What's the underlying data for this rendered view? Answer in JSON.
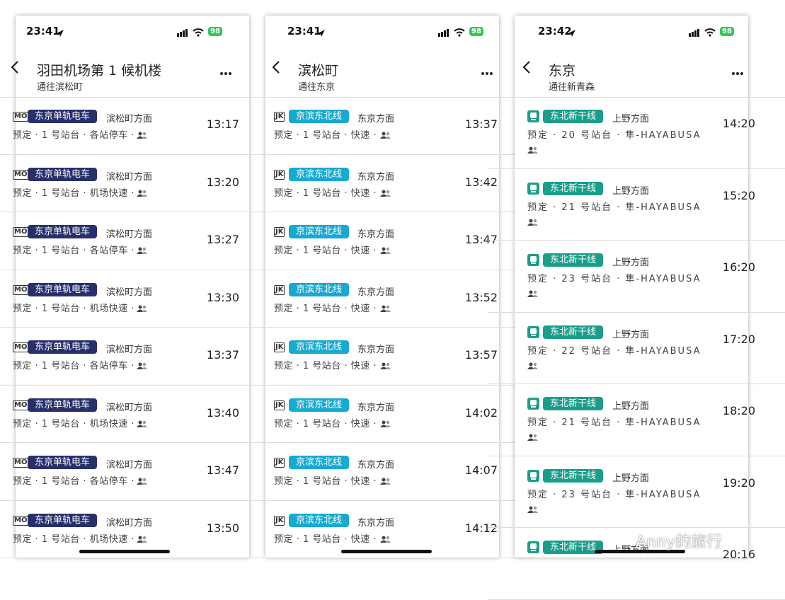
{
  "panels": [
    {
      "status_time": "23:41",
      "battery": "98",
      "title": "羽田机场第 1 候机楼",
      "subtitle": "通往滨松町",
      "color": "#28306b",
      "rows": [
        {
          "badge": "MO",
          "line": "东京单轨电车",
          "direction": "滨松町方面",
          "detail": "预定 · 1 号站台 · 各站停车 ·",
          "time": "13:17"
        },
        {
          "badge": "MO",
          "line": "东京单轨电车",
          "direction": "滨松町方面",
          "detail": "预定 · 1 号站台 · 机场快速 ·",
          "time": "13:20"
        },
        {
          "badge": "MO",
          "line": "东京单轨电车",
          "direction": "滨松町方面",
          "detail": "预定 · 1 号站台 · 各站停车 ·",
          "time": "13:27"
        },
        {
          "badge": "MO",
          "line": "东京单轨电车",
          "direction": "滨松町方面",
          "detail": "预定 · 1 号站台 · 机场快速 ·",
          "time": "13:30"
        },
        {
          "badge": "MO",
          "line": "东京单轨电车",
          "direction": "滨松町方面",
          "detail": "预定 · 1 号站台 · 各站停车 ·",
          "time": "13:37"
        },
        {
          "badge": "MO",
          "line": "东京单轨电车",
          "direction": "滨松町方面",
          "detail": "预定 · 1 号站台 · 机场快速 ·",
          "time": "13:40"
        },
        {
          "badge": "MO",
          "line": "东京单轨电车",
          "direction": "滨松町方面",
          "detail": "预定 · 1 号站台 · 各站停车 ·",
          "time": "13:47"
        },
        {
          "badge": "MO",
          "line": "东京单轨电车",
          "direction": "滨松町方面",
          "detail": "预定 · 1 号站台 · 机场快速 ·",
          "time": "13:50"
        }
      ]
    },
    {
      "status_time": "23:41",
      "battery": "98",
      "title": "滨松町",
      "subtitle": "通往东京",
      "color": "#17a9d1",
      "rows": [
        {
          "badge": "JK",
          "line": "京滨东北线",
          "direction": "东京方面",
          "detail": "预定 · 1 号站台 · 快速 ·",
          "time": "13:37"
        },
        {
          "badge": "JK",
          "line": "京滨东北线",
          "direction": "东京方面",
          "detail": "预定 · 1 号站台 · 快速 ·",
          "time": "13:42"
        },
        {
          "badge": "JK",
          "line": "京滨东北线",
          "direction": "东京方面",
          "detail": "预定 · 1 号站台 · 快速 ·",
          "time": "13:47"
        },
        {
          "badge": "JK",
          "line": "京滨东北线",
          "direction": "东京方面",
          "detail": "预定 · 1 号站台 · 快速 ·",
          "time": "13:52"
        },
        {
          "badge": "JK",
          "line": "京滨东北线",
          "direction": "东京方面",
          "detail": "预定 · 1 号站台 · 快速 ·",
          "time": "13:57"
        },
        {
          "badge": "JK",
          "line": "京滨东北线",
          "direction": "东京方面",
          "detail": "预定 · 1 号站台 · 快速 ·",
          "time": "14:02"
        },
        {
          "badge": "JK",
          "line": "京滨东北线",
          "direction": "东京方面",
          "detail": "预定 · 1 号站台 · 快速 ·",
          "time": "14:07"
        },
        {
          "badge": "JK",
          "line": "京滨东北线",
          "direction": "东京方面",
          "detail": "预定 · 1 号站台 · 快速 ·",
          "time": "14:12"
        }
      ]
    },
    {
      "status_time": "23:42",
      "battery": "98",
      "title": "东京",
      "subtitle": "通往新青森",
      "color": "#1a9e89",
      "rows": [
        {
          "line": "东北新干线",
          "direction": "上野方面",
          "detail": "预定 · 20 号站台 · 隼-HAYABUSA",
          "time": "14:20"
        },
        {
          "line": "东北新干线",
          "direction": "上野方面",
          "detail": "预定 · 21 号站台 · 隼-HAYABUSA",
          "time": "15:20"
        },
        {
          "line": "东北新干线",
          "direction": "上野方面",
          "detail": "预定 · 23 号站台 · 隼-HAYABUSA",
          "time": "16:20"
        },
        {
          "line": "东北新干线",
          "direction": "上野方面",
          "detail": "预定 · 22 号站台 · 隼-HAYABUSA",
          "time": "17:20"
        },
        {
          "line": "东北新干线",
          "direction": "上野方面",
          "detail": "预定 · 21 号站台 · 隼-HAYABUSA",
          "time": "18:20"
        },
        {
          "line": "东北新干线",
          "direction": "上野方面",
          "detail": "预定 · 23 号站台 · 隼-HAYABUSA",
          "time": "19:20"
        },
        {
          "line": "东北新干线",
          "direction": "上野方面",
          "time": "20:16"
        }
      ]
    }
  ],
  "watermark": "Anny的旅行"
}
